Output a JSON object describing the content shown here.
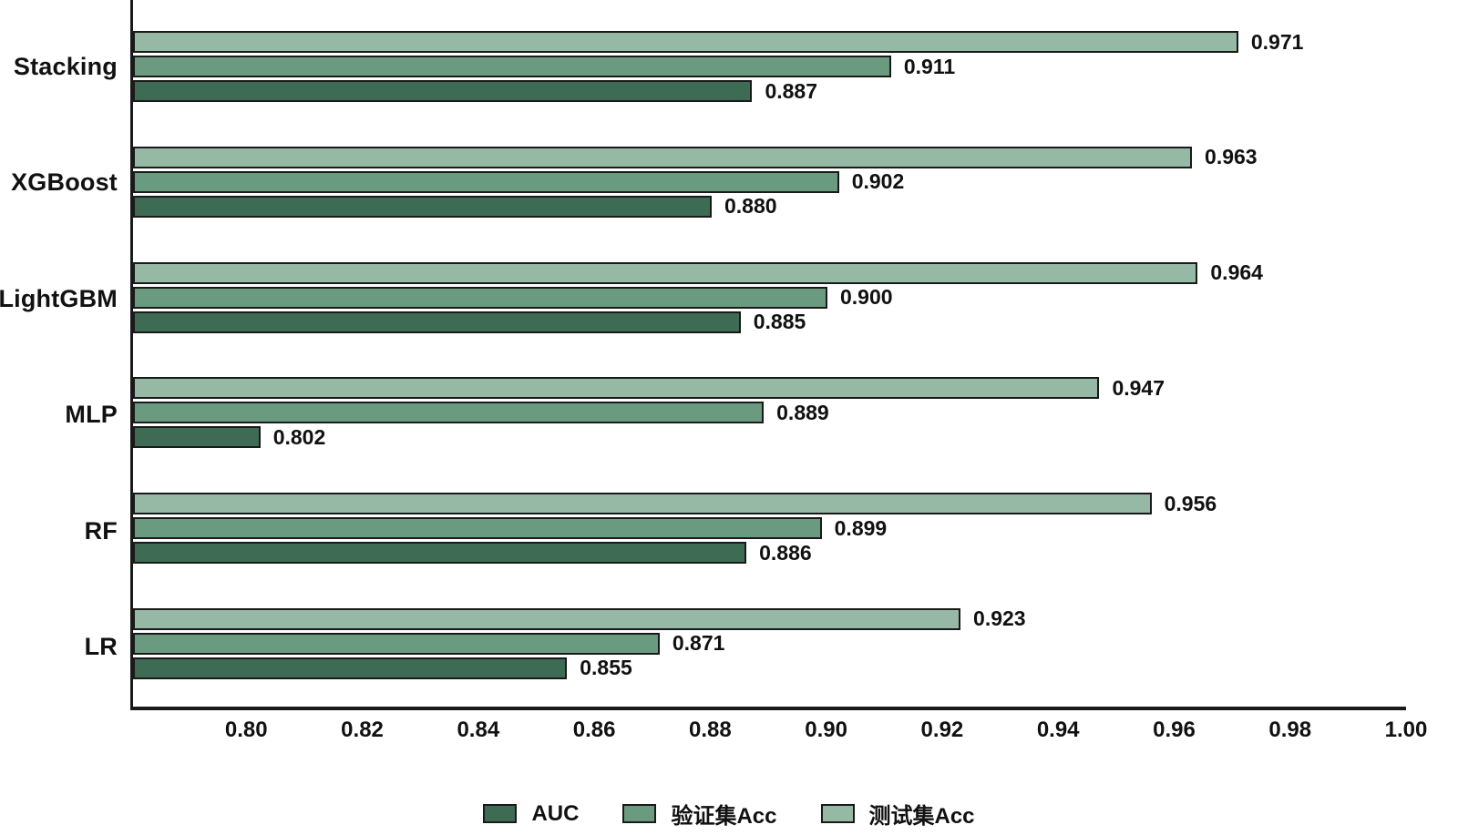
{
  "chart_data": {
    "type": "bar",
    "orientation": "horizontal",
    "title": "",
    "xlabel": "",
    "ylabel": "",
    "categories": [
      "Stacking",
      "XGBoost",
      "LightGBM",
      "MLP",
      "RF",
      "LR"
    ],
    "series": [
      {
        "name": "AUC",
        "color": "#3d6b53",
        "values": [
          0.887,
          0.88,
          0.885,
          0.802,
          0.886,
          0.855
        ]
      },
      {
        "name": "验证集Acc",
        "color": "#6a9b81",
        "values": [
          0.911,
          0.902,
          0.9,
          0.889,
          0.899,
          0.871
        ]
      },
      {
        "name": "测试集Acc",
        "color": "#95b9a4",
        "values": [
          0.971,
          0.963,
          0.964,
          0.947,
          0.956,
          0.923
        ]
      }
    ],
    "bar_display_order_top_to_bottom": [
      "测试集Acc",
      "验证集Acc",
      "AUC"
    ],
    "value_labels_decimals": 3,
    "xlim": [
      0.78,
      1.0
    ],
    "xticks": [
      "0.80",
      "0.82",
      "0.84",
      "0.86",
      "0.88",
      "0.90",
      "0.92",
      "0.94",
      "0.96",
      "0.98",
      "1.00"
    ],
    "grid": false,
    "legend_position": "bottom",
    "colors": {
      "axis": "#1a1a1a",
      "bar_border": "#1a1a1a",
      "text": "#111111",
      "background": "#ffffff"
    }
  }
}
